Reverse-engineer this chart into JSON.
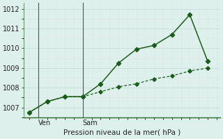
{
  "xlabel": "Pression niveau de la mer( hPa )",
  "background_color": "#ddf0ec",
  "grid_color_major": "#c8dcd8",
  "grid_color_minor": "#dde8e5",
  "line_color": "#1a5c1a",
  "axis_color": "#2a6b2a",
  "ylim": [
    1006.5,
    1012.3
  ],
  "yticks": [
    1007,
    1008,
    1009,
    1010,
    1011,
    1012
  ],
  "xlim": [
    -0.3,
    10.7
  ],
  "line1_x": [
    0,
    1,
    2,
    3,
    4,
    5,
    6,
    7,
    8,
    9,
    10
  ],
  "line1_y": [
    1006.75,
    1007.3,
    1007.55,
    1007.55,
    1008.2,
    1009.25,
    1009.95,
    1010.15,
    1010.7,
    1011.7,
    1009.35
  ],
  "line2_x": [
    0,
    1,
    2,
    3,
    4,
    5,
    6,
    7,
    8,
    9,
    10
  ],
  "line2_y": [
    1006.75,
    1007.3,
    1007.55,
    1007.55,
    1007.8,
    1008.05,
    1008.2,
    1008.45,
    1008.6,
    1008.85,
    1009.0
  ],
  "ven_x": 0.5,
  "sam_x": 3.0,
  "ven_label": "Ven",
  "sam_label": "Sam",
  "day_line_color": "#555555"
}
